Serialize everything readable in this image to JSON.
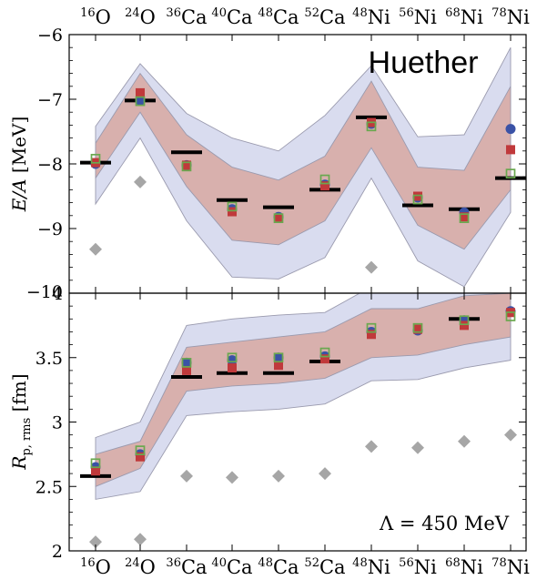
{
  "nuclei": [
    {
      "mass": "16",
      "sym": "O"
    },
    {
      "mass": "24",
      "sym": "O"
    },
    {
      "mass": "36",
      "sym": "Ca"
    },
    {
      "mass": "40",
      "sym": "Ca"
    },
    {
      "mass": "48",
      "sym": "Ca"
    },
    {
      "mass": "52",
      "sym": "Ca"
    },
    {
      "mass": "48",
      "sym": "Ni"
    },
    {
      "mass": "56",
      "sym": "Ni"
    },
    {
      "mass": "68",
      "sym": "Ni"
    },
    {
      "mass": "78",
      "sym": "Ni"
    }
  ],
  "label_top": "Huether",
  "label_bottom": "Λ = 450 MeV",
  "colors": {
    "outer_band": "#d9dcef",
    "inner_band": "#d8b0ad",
    "band_edge": "#9a9aae",
    "experiment": "#000000",
    "circle": "#3a52a6",
    "square_filled": "#c0393b",
    "square_open": "#6aa84f",
    "diamond": "#a6a6a6"
  },
  "chart_data": [
    {
      "type": "line",
      "name": "energy",
      "ylabel_main": "E/A",
      "ylabel_unit": "[MeV]",
      "ylim": [
        -10,
        -6
      ],
      "yticks": [
        -10,
        -9,
        -8,
        -7,
        -6
      ],
      "outer_band_upper": [
        -7.42,
        -6.45,
        -7.22,
        -7.6,
        -7.8,
        -7.25,
        -6.48,
        -7.58,
        -7.55,
        -6.2
      ],
      "outer_band_lower": [
        -8.62,
        -7.6,
        -8.88,
        -9.75,
        -9.78,
        -9.45,
        -8.22,
        -9.5,
        -9.9,
        -8.75
      ],
      "inner_band_upper": [
        -7.68,
        -6.6,
        -7.55,
        -8.05,
        -8.25,
        -7.88,
        -6.72,
        -8.05,
        -8.1,
        -6.8
      ],
      "inner_band_lower": [
        -8.22,
        -7.2,
        -8.35,
        -9.18,
        -9.25,
        -8.88,
        -7.75,
        -8.95,
        -9.32,
        -8.4
      ],
      "experiment": [
        -7.98,
        -7.02,
        -7.82,
        -8.56,
        -8.67,
        -8.4,
        -7.28,
        -8.64,
        -8.7,
        -8.22
      ],
      "circles": [
        -8.0,
        -7.02,
        -8.02,
        -8.7,
        -8.82,
        -8.32,
        -7.38,
        -8.52,
        -8.75,
        -7.46
      ],
      "squares_filled": [
        -7.98,
        -6.9,
        -8.02,
        -8.74,
        -8.84,
        -8.34,
        -7.36,
        -8.5,
        -8.82,
        -7.78
      ],
      "squares_open": [
        -7.92,
        -7.03,
        -8.04,
        -8.66,
        -8.84,
        -8.24,
        -7.42,
        -8.55,
        -8.84,
        -8.15
      ],
      "diamonds": [
        -9.32,
        -8.28,
        null,
        null,
        null,
        null,
        -9.6,
        null,
        null,
        null
      ]
    },
    {
      "type": "line",
      "name": "radius",
      "ylabel_main": "R",
      "ylabel_sub": "p, rms",
      "ylabel_unit": "[fm]",
      "ylim": [
        2.0,
        4.0
      ],
      "yticks": [
        2,
        2.5,
        3,
        3.5,
        4
      ],
      "outer_band_upper": [
        2.88,
        3.0,
        3.75,
        3.8,
        3.83,
        3.85,
        4.05,
        4.06,
        4.18,
        4.2
      ],
      "outer_band_lower": [
        2.4,
        2.46,
        3.05,
        3.08,
        3.1,
        3.14,
        3.32,
        3.33,
        3.42,
        3.48
      ],
      "inner_band_upper": [
        2.75,
        2.85,
        3.58,
        3.62,
        3.66,
        3.7,
        3.88,
        3.88,
        3.98,
        4.0
      ],
      "inner_band_lower": [
        2.5,
        2.64,
        3.24,
        3.28,
        3.3,
        3.34,
        3.5,
        3.52,
        3.6,
        3.66
      ],
      "experiment": [
        2.58,
        null,
        3.35,
        3.38,
        3.38,
        3.47,
        null,
        null,
        3.8,
        null
      ],
      "circles": [
        2.65,
        2.75,
        3.46,
        3.48,
        3.5,
        3.51,
        3.7,
        3.71,
        3.79,
        3.86
      ],
      "squares_filled": [
        2.62,
        2.73,
        3.4,
        3.42,
        3.44,
        3.49,
        3.68,
        3.72,
        3.75,
        3.85
      ],
      "squares_open": [
        2.68,
        2.78,
        3.46,
        3.5,
        3.5,
        3.54,
        3.73,
        3.73,
        3.79,
        3.82
      ],
      "diamonds": [
        2.07,
        2.09,
        2.58,
        2.57,
        2.58,
        2.6,
        2.81,
        2.8,
        2.85,
        2.9
      ]
    }
  ]
}
